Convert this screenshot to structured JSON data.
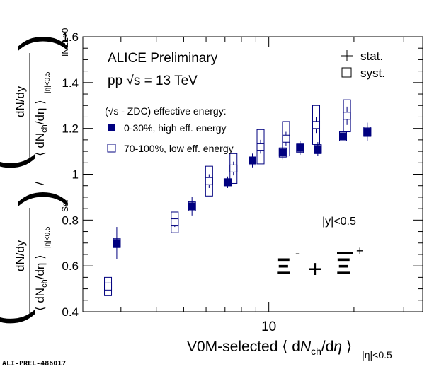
{
  "chart_data": {
    "type": "scatter",
    "title": "",
    "xlabel": "V0M-selected ⟨ dN_ch/dη ⟩ |η|<0.5",
    "xlabel_parts": {
      "main": "V0M-selected ⟨ d",
      "N": "N",
      "ch": "ch",
      "rest": "/d",
      "eta": "η",
      "close": " ⟩",
      "sub": "|η|<0.5"
    },
    "ylabel": "(dN/dy / ⟨dN_ch/dη⟩|η|<0.5)_Sel / (dN/dy / ⟨dN_ch/dη⟩|η|<0.5)_INEL>0",
    "ylabel_parts": {
      "dndy": "dN/dy",
      "dnch_open": "⟨ dN",
      "ch": "ch",
      "dnch_close": "/dη ⟩",
      "eta_sub": "|η|<0.5",
      "sel": "Sel",
      "inel": "INEL>0",
      "slash": "/"
    },
    "x_scale": "log",
    "xlim": [
      2.2,
      35
    ],
    "ylim": [
      0.4,
      1.6
    ],
    "x_tick_labels": [
      "10"
    ],
    "y_ticks": [
      "0.4",
      "0.6",
      "0.8",
      "1",
      "1.2",
      "1.4",
      "1.6"
    ],
    "grid": false,
    "legend_placement": "top-left",
    "annotations": {
      "experiment": "ALICE Preliminary",
      "system": "pp  √s = 13 TeV",
      "selection_header": "(√s - ZDC) effective energy:",
      "rapidity": "|y|<0.5",
      "particle": "Ξ⁻ + Ξ̄⁺",
      "stat": "stat.",
      "syst": "syst."
    },
    "series": [
      {
        "name": "0-30%, high eff. energy",
        "marker": "filled-square",
        "color": "#00007f",
        "x": [
          2.9,
          5.35,
          7.15,
          8.75,
          11.2,
          12.9,
          14.9,
          18.3,
          22.3
        ],
        "y": [
          0.7,
          0.86,
          0.965,
          1.06,
          1.095,
          1.115,
          1.11,
          1.165,
          1.185
        ],
        "stat_err": [
          0.07,
          0.04,
          0.025,
          0.03,
          0.03,
          0.03,
          0.03,
          0.035,
          0.04
        ],
        "syst_err": [
          0.02,
          0.02,
          0.015,
          0.02,
          0.02,
          0.02,
          0.02,
          0.02,
          0.02
        ]
      },
      {
        "name": "70-100%, low eff. energy",
        "marker": "open-square",
        "color": "#00007f",
        "x": [
          2.7,
          4.65,
          6.15,
          7.5,
          9.35,
          11.5,
          14.7,
          18.9
        ],
        "y": [
          0.51,
          0.79,
          0.97,
          1.025,
          1.12,
          1.155,
          1.215,
          1.255
        ],
        "stat_err": [
          0.02,
          0.02,
          0.03,
          0.03,
          0.03,
          0.03,
          0.035,
          0.04
        ],
        "syst_err": [
          0.04,
          0.045,
          0.065,
          0.065,
          0.075,
          0.075,
          0.085,
          0.07
        ]
      }
    ]
  },
  "footer": {
    "label": "ALI-PREL-486017"
  }
}
